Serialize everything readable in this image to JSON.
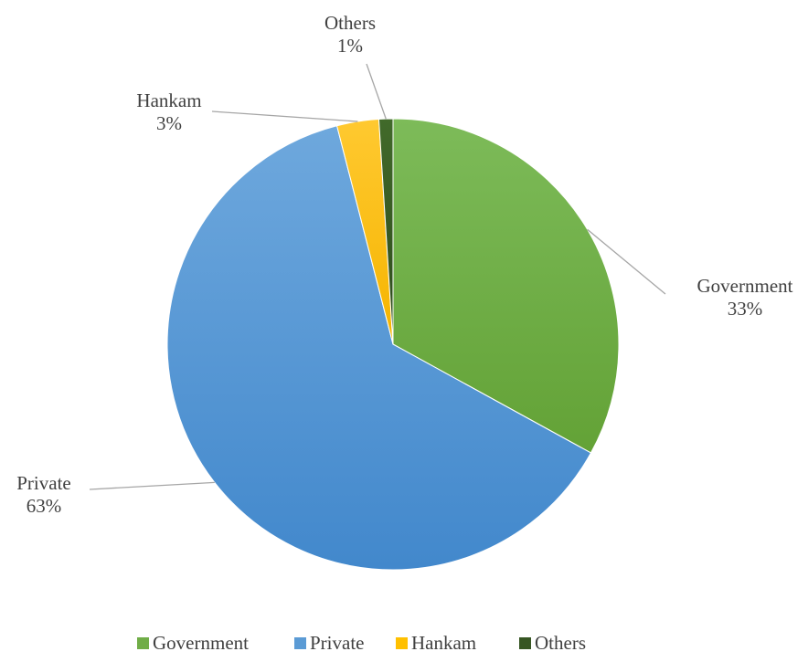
{
  "chart_data": {
    "type": "pie",
    "title": "",
    "categories": [
      "Government",
      "Private",
      "Hankam",
      "Others"
    ],
    "values": [
      33,
      63,
      3,
      1
    ],
    "percent_labels": [
      "33%",
      "63%",
      "3%",
      "1%"
    ],
    "start_angle_deg": 0,
    "direction": "clockwise",
    "legend": {
      "position": "bottom",
      "entries": [
        "Government",
        "Private",
        "Hankam",
        "Others"
      ]
    },
    "colors": {
      "Government": "#70AD47",
      "Private": "#5B9BD5",
      "Hankam": "#FFC000",
      "Others": "#375623"
    }
  }
}
